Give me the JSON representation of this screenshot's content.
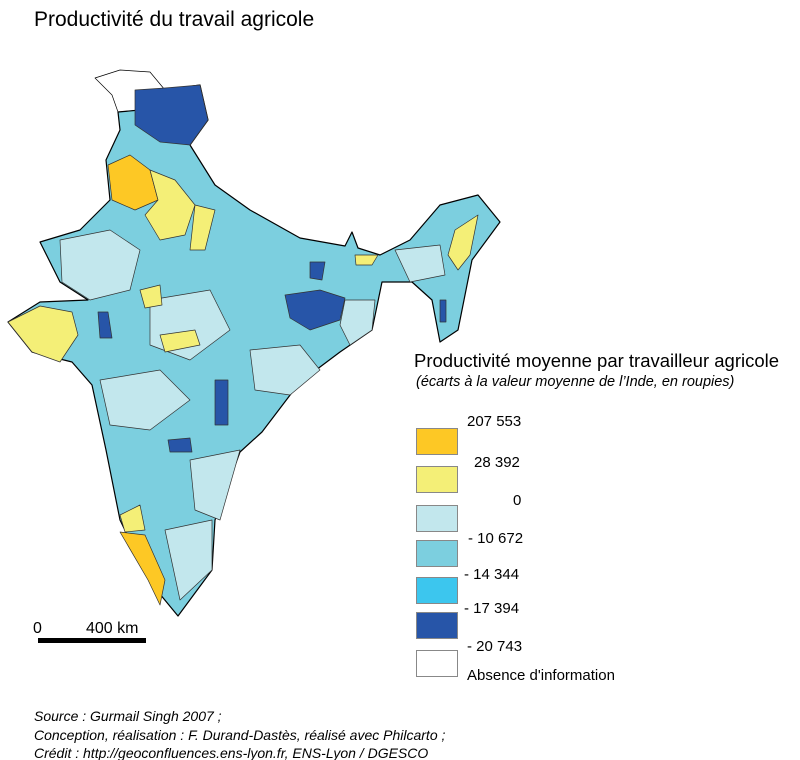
{
  "title": "Productivité du travail agricole",
  "legend": {
    "title": "Productivité moyenne par travailleur agricole",
    "subtitle": "(écarts à la valeur moyenne de l’Inde, en roupies)",
    "breaks": [
      "207 553",
      "28 392",
      "0",
      "- 10 672",
      "- 14 344",
      "- 17 394",
      "- 20 743"
    ],
    "classes": [
      {
        "color": "#fdc825"
      },
      {
        "color": "#f4ef77"
      },
      {
        "color": "#c2e7ed"
      },
      {
        "color": "#7ccfdf"
      },
      {
        "color": "#3cc6ee"
      },
      {
        "color": "#2755a8"
      },
      {
        "color": "#ffffff",
        "label": "Absence d'information"
      }
    ]
  },
  "scale": {
    "start": "0",
    "end": "400 km"
  },
  "credits": [
    "Source : Gurmail Singh 2007 ;",
    "Conception, réalisation : F. Durand-Dastès, réalisé avec Philcarto ;",
    "Crédit : http://geoconfluences.ens-lyon.fr, ENS-Lyon / DGESCO"
  ]
}
